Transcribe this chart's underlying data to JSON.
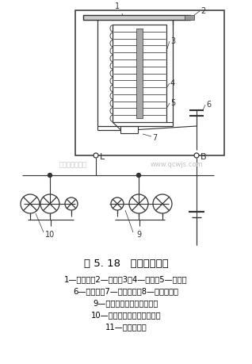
{
  "title": "图 5. 18   电容式闪光器",
  "caption_lines": [
    "1—弹簧片；2—触点；3、4—线圈；5—铁心；",
    "6—电容器；7—灭弧电阻；8—电源开关；",
    "9—右转向信号灯和指示灯；",
    "10—左转向信号灯和指示灯；",
    "11—转向灯开关"
  ],
  "watermark1": "汽车维修技术网",
  "watermark2": "www.qcwjs.com",
  "bg_color": "#ffffff",
  "line_color": "#333333"
}
